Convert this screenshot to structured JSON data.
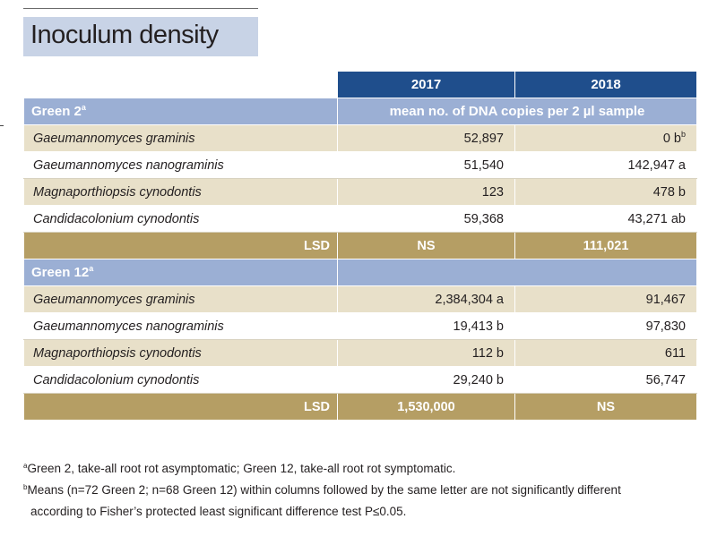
{
  "title": "Inoculum density",
  "years": [
    "2017",
    "2018"
  ],
  "groups": [
    {
      "name": "Green 2",
      "sup": "a",
      "description": "mean no. of DNA copies per 2 µl sample",
      "rows": [
        {
          "species": "Gaeumannomyces graminis",
          "v2017": "52,897",
          "v2018": "0 b",
          "v2018_sup": "b"
        },
        {
          "species": "Gaeumannomyces nanograminis",
          "v2017": "51,540",
          "v2018": "142,947 a",
          "v2018_sup": ""
        },
        {
          "species": "Magnaporthiopsis cynodontis",
          "v2017": "123",
          "v2018": "478 b",
          "v2018_sup": ""
        },
        {
          "species": "Candidacolonium cynodontis",
          "v2017": "59,368",
          "v2018": "43,271 ab",
          "v2018_sup": ""
        }
      ],
      "lsd_label": "LSD",
      "lsd_2017": "NS",
      "lsd_2018": "111,021"
    },
    {
      "name": "Green 12",
      "sup": "a",
      "description": "",
      "rows": [
        {
          "species": "Gaeumannomyces graminis",
          "v2017": "2,384,304 a",
          "v2018": "91,467",
          "v2018_sup": ""
        },
        {
          "species": "Gaeumannomyces nanograminis",
          "v2017": "19,413 b",
          "v2018": "97,830",
          "v2018_sup": ""
        },
        {
          "species": "Magnaporthiopsis cynodontis",
          "v2017": "112 b",
          "v2018": "611",
          "v2018_sup": ""
        },
        {
          "species": "Candidacolonium cynodontis",
          "v2017": "29,240 b",
          "v2018": "56,747",
          "v2018_sup": ""
        }
      ],
      "lsd_label": "LSD",
      "lsd_2017": "1,530,000",
      "lsd_2018": "NS"
    }
  ],
  "footnotes": [
    {
      "mark": "a",
      "text": "Green 2, take-all root rot asymptomatic; Green 12, take-all root rot symptomatic."
    },
    {
      "mark": "b",
      "text": "Means (n=72 Green 2; n=68 Green 12) within columns followed by the same letter are not significantly different"
    },
    {
      "mark": "",
      "text": "according to Fisher’s protected least significant difference test P≤0.05."
    }
  ],
  "colors": {
    "header_blue": "#1f4e8c",
    "group_blue": "#9bafd4",
    "row_tan": "#e8e0c9",
    "lsd_gold": "#b59e64",
    "title_box": "#c8d3e6"
  }
}
